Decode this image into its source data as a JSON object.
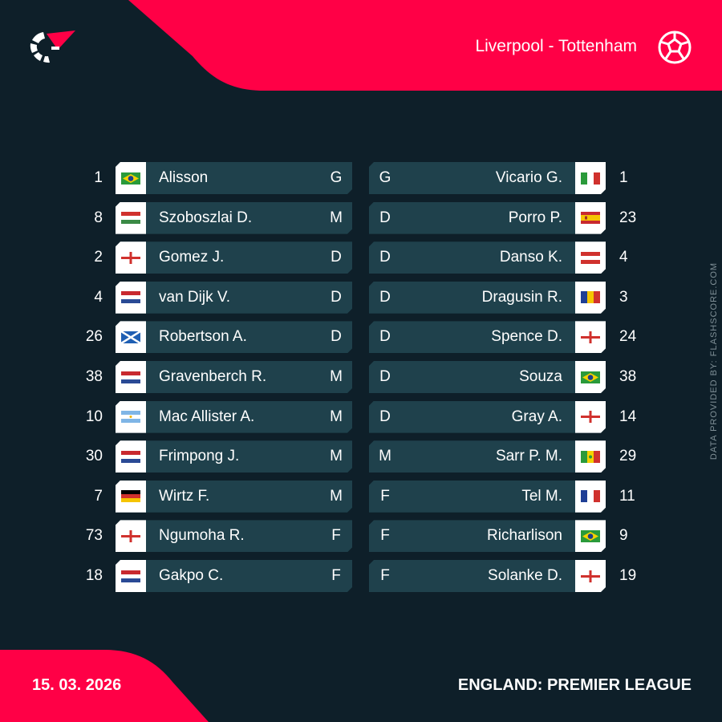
{
  "header": {
    "match_title": "Liverpool - Tottenham",
    "logo": "flashscore-logo",
    "sport_icon": "football-icon"
  },
  "colors": {
    "accent": "#ff0046",
    "background": "#0e1f29",
    "row": "#1f414c"
  },
  "home": [
    {
      "number": "1",
      "name": "Alisson",
      "pos": "G",
      "flag": "brazil"
    },
    {
      "number": "8",
      "name": "Szoboszlai D.",
      "pos": "M",
      "flag": "hungary"
    },
    {
      "number": "2",
      "name": "Gomez J.",
      "pos": "D",
      "flag": "england"
    },
    {
      "number": "4",
      "name": "van Dijk V.",
      "pos": "D",
      "flag": "netherlands"
    },
    {
      "number": "26",
      "name": "Robertson A.",
      "pos": "D",
      "flag": "scotland"
    },
    {
      "number": "38",
      "name": "Gravenberch R.",
      "pos": "M",
      "flag": "netherlands"
    },
    {
      "number": "10",
      "name": "Mac Allister A.",
      "pos": "M",
      "flag": "argentina"
    },
    {
      "number": "30",
      "name": "Frimpong J.",
      "pos": "M",
      "flag": "netherlands"
    },
    {
      "number": "7",
      "name": "Wirtz F.",
      "pos": "M",
      "flag": "germany"
    },
    {
      "number": "73",
      "name": "Ngumoha R.",
      "pos": "F",
      "flag": "england"
    },
    {
      "number": "18",
      "name": "Gakpo C.",
      "pos": "F",
      "flag": "netherlands"
    }
  ],
  "away": [
    {
      "number": "1",
      "name": "Vicario G.",
      "pos": "G",
      "flag": "italy"
    },
    {
      "number": "23",
      "name": "Porro P.",
      "pos": "D",
      "flag": "spain"
    },
    {
      "number": "4",
      "name": "Danso K.",
      "pos": "D",
      "flag": "austria"
    },
    {
      "number": "3",
      "name": "Dragusin R.",
      "pos": "D",
      "flag": "romania"
    },
    {
      "number": "24",
      "name": "Spence D.",
      "pos": "D",
      "flag": "england"
    },
    {
      "number": "38",
      "name": "Souza",
      "pos": "D",
      "flag": "brazil"
    },
    {
      "number": "14",
      "name": "Gray A.",
      "pos": "D",
      "flag": "england"
    },
    {
      "number": "29",
      "name": "Sarr P. M.",
      "pos": "M",
      "flag": "senegal"
    },
    {
      "number": "11",
      "name": "Tel M.",
      "pos": "F",
      "flag": "france"
    },
    {
      "number": "9",
      "name": "Richarlison",
      "pos": "F",
      "flag": "brazil"
    },
    {
      "number": "19",
      "name": "Solanke D.",
      "pos": "F",
      "flag": "england"
    }
  ],
  "footer": {
    "date": "15. 03. 2026",
    "league": "ENGLAND: PREMIER LEAGUE",
    "credit": "DATA PROVIDED BY: FLASHSCORE.COM"
  }
}
